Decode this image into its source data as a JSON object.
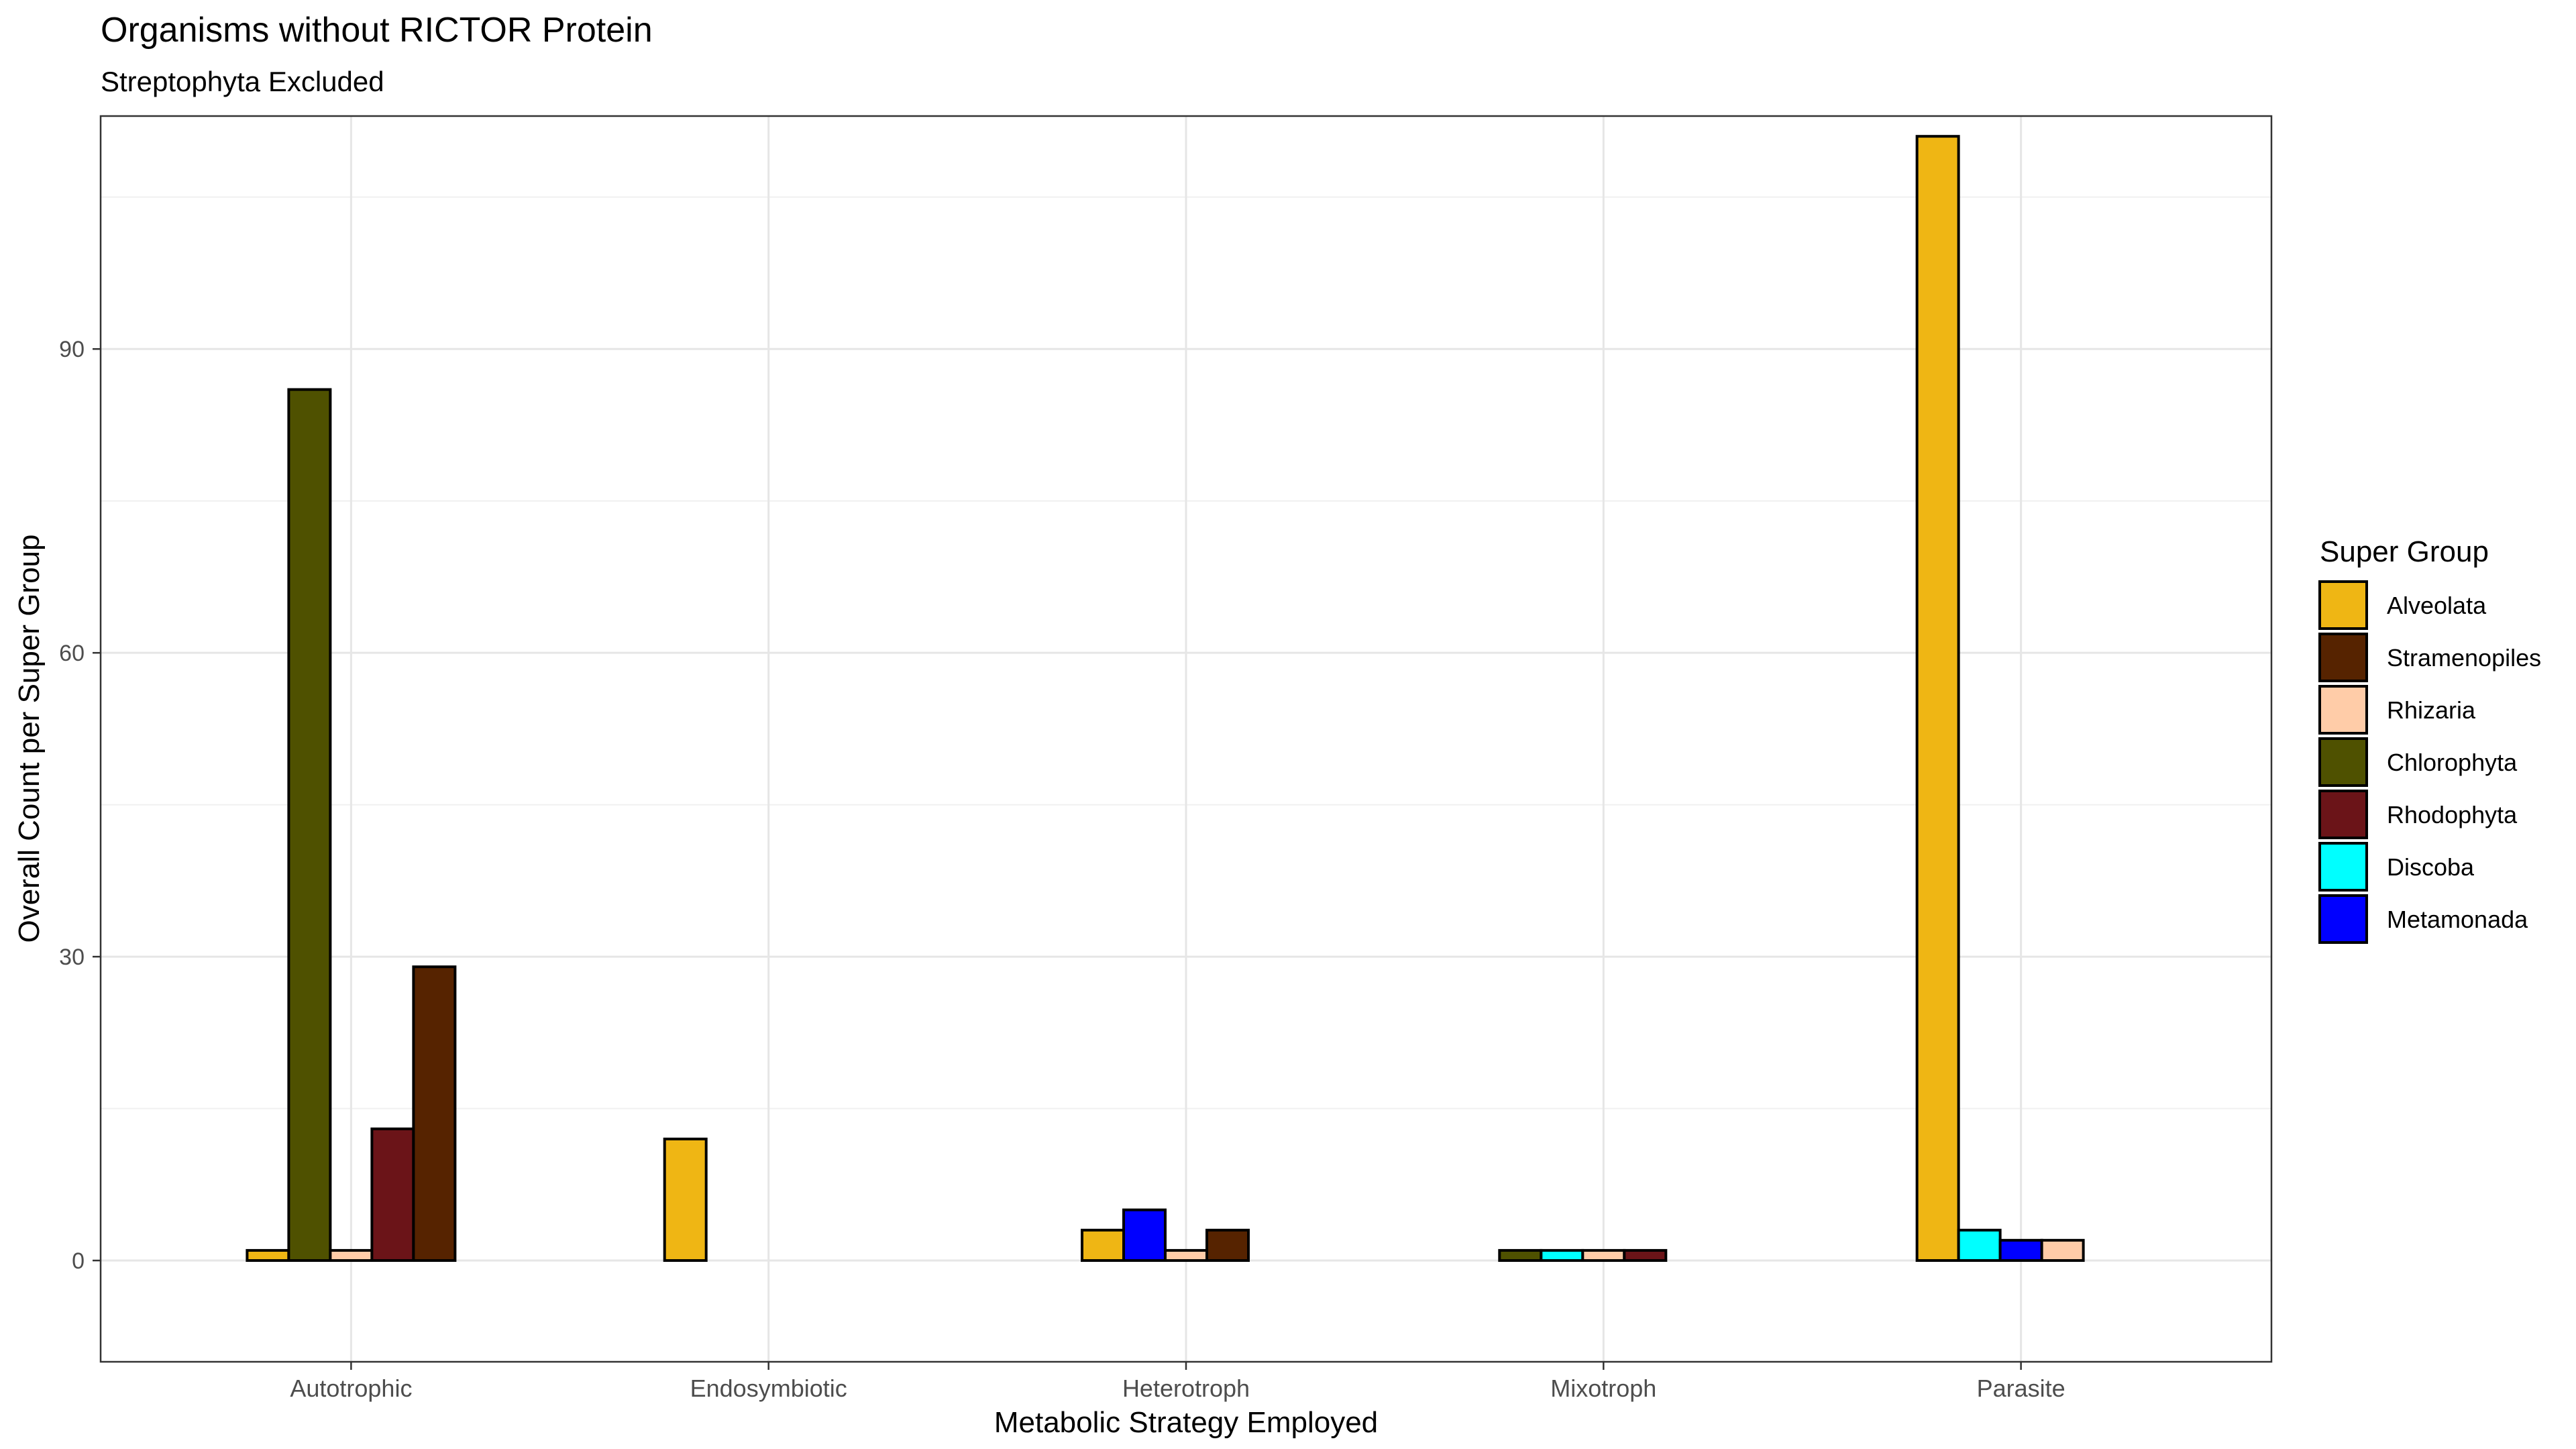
{
  "chart_data": {
    "type": "bar",
    "title": "Organisms without RICTOR Protein",
    "subtitle": "Streptophyta Excluded",
    "xlabel": "Metabolic Strategy Employed",
    "ylabel": "Overall Count per Super Group",
    "categories": [
      "Autotrophic",
      "Endosymbiotic",
      "Heterotroph",
      "Mixotroph",
      "Parasite"
    ],
    "ylim": [
      -10,
      113
    ],
    "yticks": [
      0,
      30,
      60,
      90
    ],
    "grid": true,
    "legend": {
      "title": "Super Group",
      "placement": "right",
      "entries": [
        {
          "name": "Alveolata",
          "color": "#EFB614"
        },
        {
          "name": "Stramenopiles",
          "color": "#562300"
        },
        {
          "name": "Rhizaria",
          "color": "#FFCCA8"
        },
        {
          "name": "Chlorophyta",
          "color": "#4F5100"
        },
        {
          "name": "Rhodophyta",
          "color": "#6B1418"
        },
        {
          "name": "Discoba",
          "color": "#00FFFF"
        },
        {
          "name": "Metamonada",
          "color": "#0000FF"
        }
      ]
    },
    "groups": [
      {
        "category": "Autotrophic",
        "bars": [
          {
            "group": "Alveolata",
            "value": 1
          },
          {
            "group": "Chlorophyta",
            "value": 86
          },
          {
            "group": "Rhizaria",
            "value": 1
          },
          {
            "group": "Rhodophyta",
            "value": 13
          },
          {
            "group": "Stramenopiles",
            "value": 29
          }
        ]
      },
      {
        "category": "Endosymbiotic",
        "bars": [
          {
            "group": "Alveolata",
            "value": 12
          }
        ]
      },
      {
        "category": "Heterotroph",
        "bars": [
          {
            "group": "Alveolata",
            "value": 3
          },
          {
            "group": "Metamonada",
            "value": 5
          },
          {
            "group": "Rhizaria",
            "value": 1
          },
          {
            "group": "Stramenopiles",
            "value": 3
          }
        ]
      },
      {
        "category": "Mixotroph",
        "bars": [
          {
            "group": "Chlorophyta",
            "value": 1
          },
          {
            "group": "Discoba",
            "value": 1
          },
          {
            "group": "Rhizaria",
            "value": 1
          },
          {
            "group": "Rhodophyta",
            "value": 1
          }
        ]
      },
      {
        "category": "Parasite",
        "bars": [
          {
            "group": "Alveolata",
            "value": 111
          },
          {
            "group": "Discoba",
            "value": 3
          },
          {
            "group": "Metamonada",
            "value": 2
          },
          {
            "group": "Rhizaria",
            "value": 2
          }
        ]
      }
    ]
  }
}
